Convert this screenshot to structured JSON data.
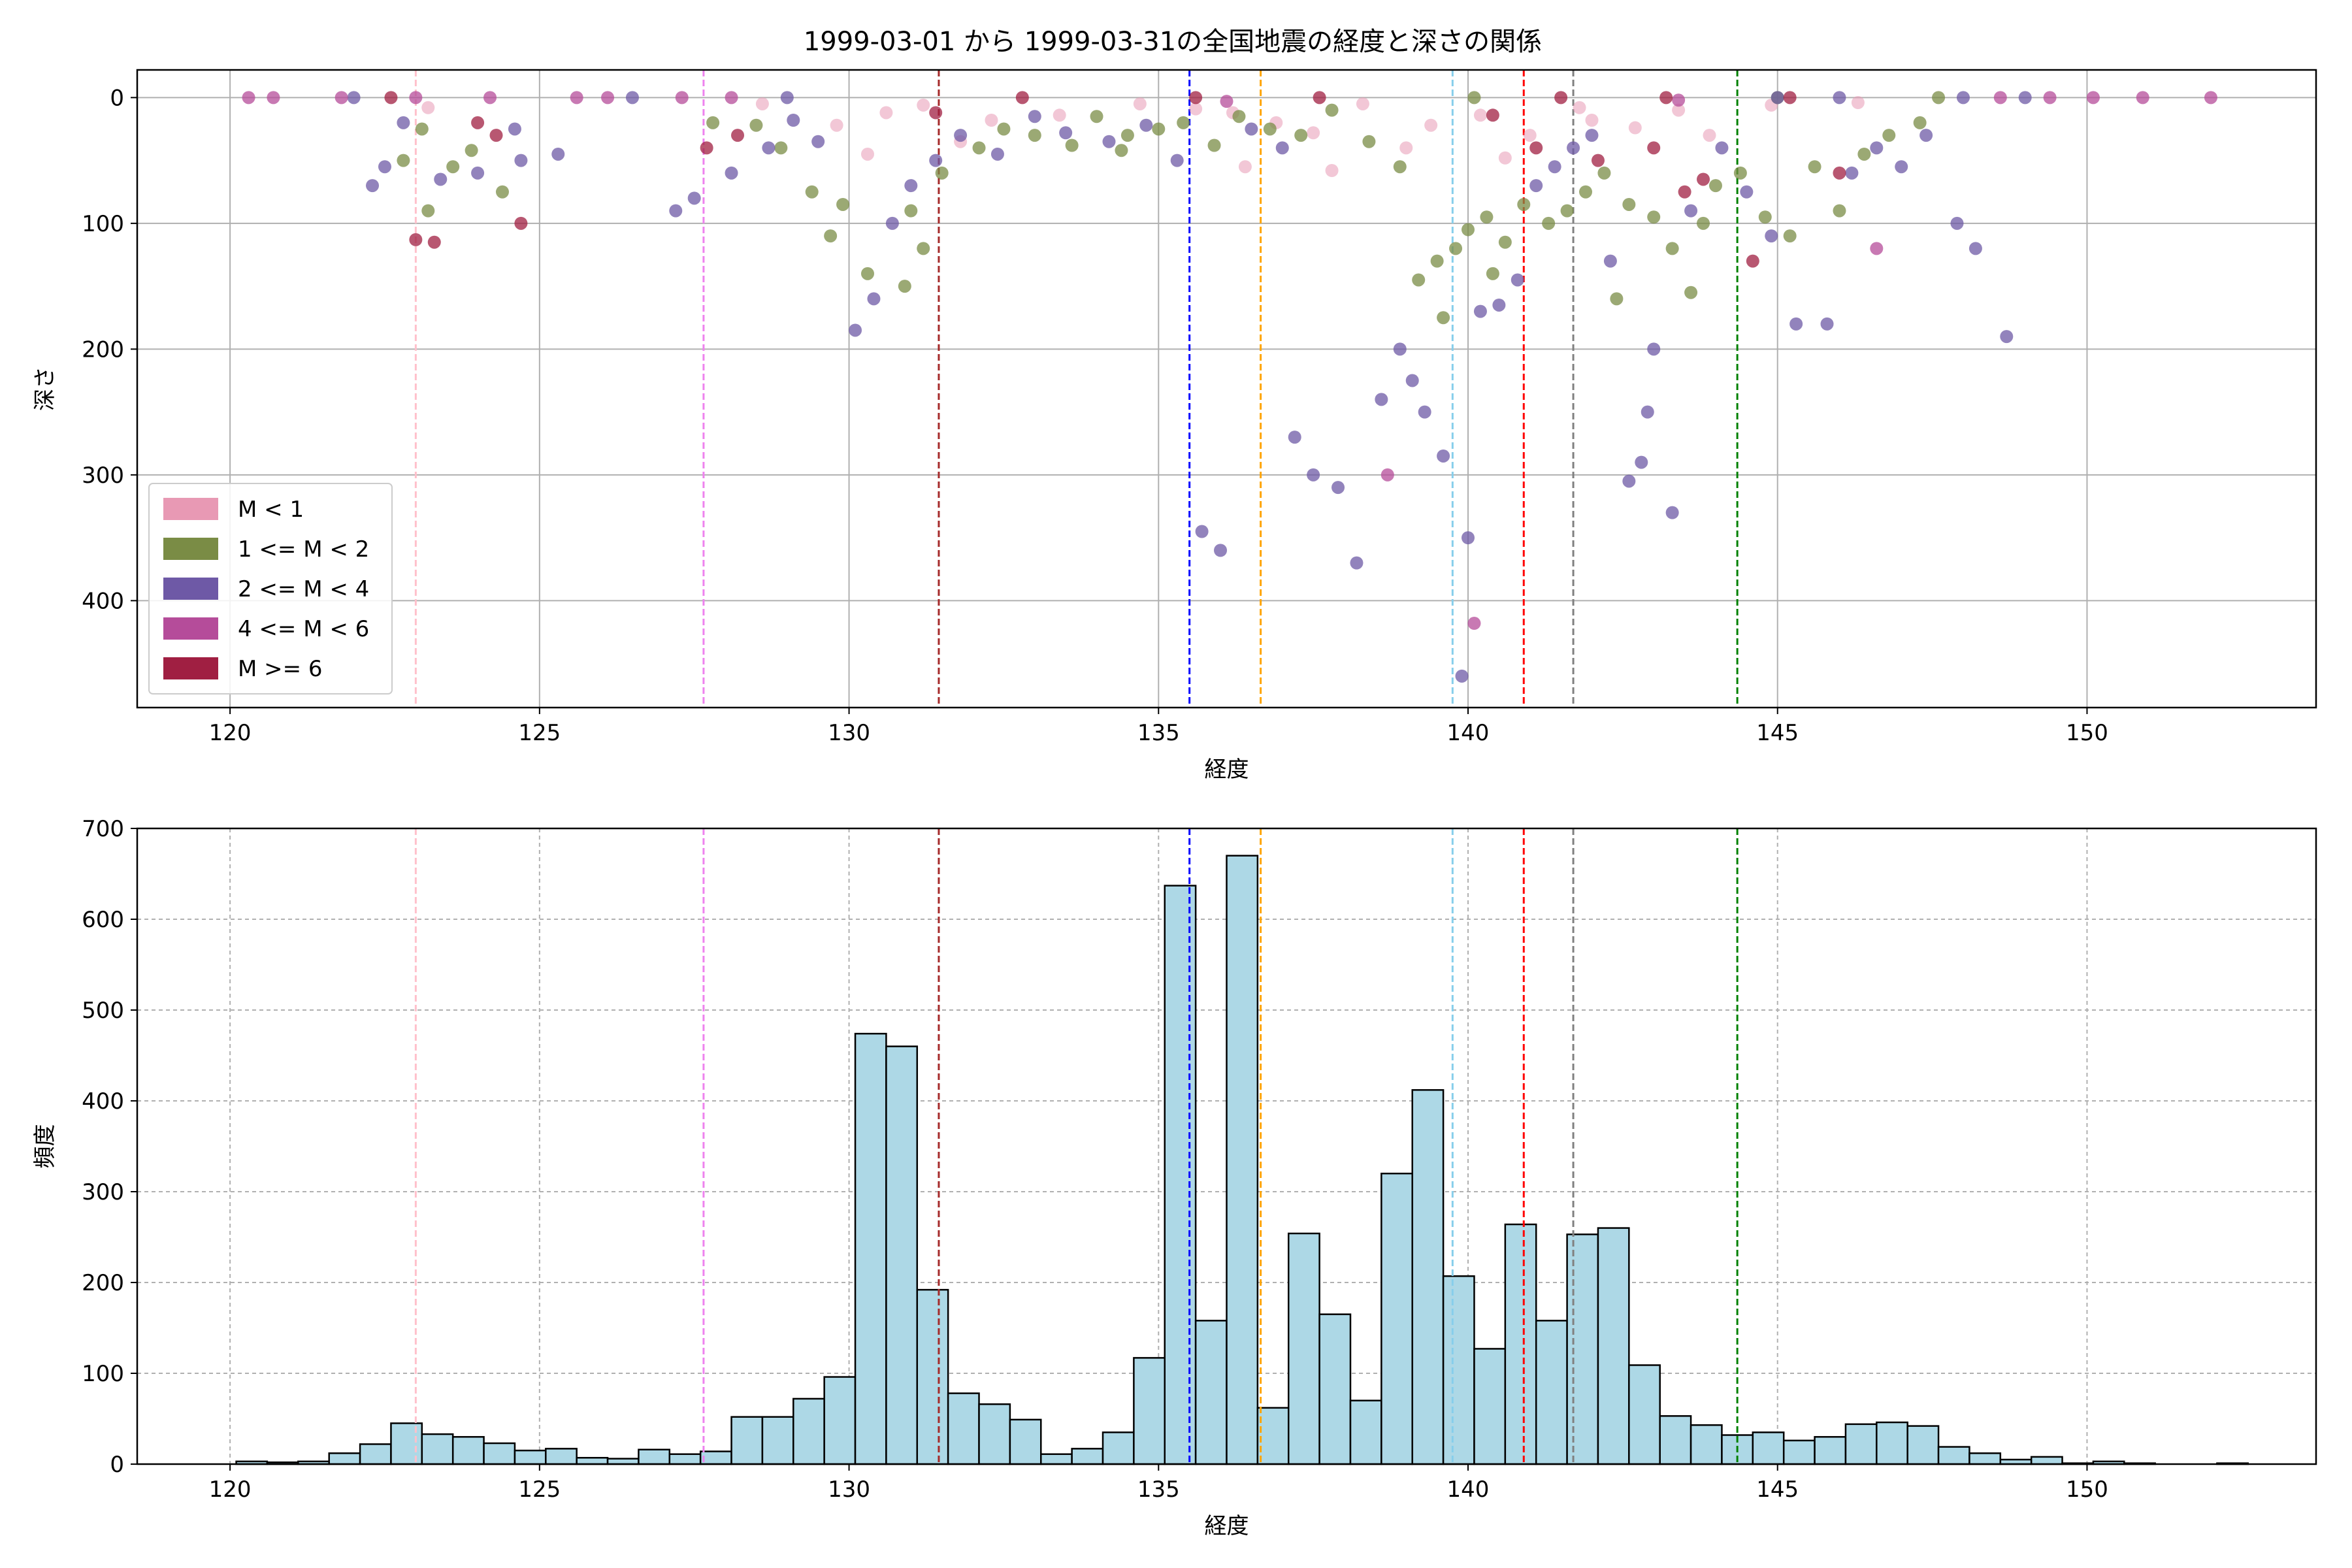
{
  "title": "1999-03-01 から 1999-03-31の全国地震の経度と深さの関係",
  "colors": {
    "background": "#ffffff",
    "grid": "#b0b0b0",
    "bar_fill": "#add8e6",
    "bar_edge": "#000000"
  },
  "chart_data": [
    {
      "type": "scatter",
      "title": "1999-03-01 から 1999-03-31の全国地震の経度と深さの関係",
      "xlabel": "経度",
      "ylabel": "深さ",
      "xlim": [
        118.5,
        153.7
      ],
      "ylim": [
        485,
        -22
      ],
      "y_inverted": true,
      "xticks": [
        120,
        125,
        130,
        135,
        140,
        145,
        150
      ],
      "yticks": [
        0,
        100,
        200,
        300,
        400
      ],
      "grid": true,
      "legend_position": "lower-left",
      "legend": [
        {
          "label": "M < 1",
          "color": "#e899b4"
        },
        {
          "label": "1 <= M < 2",
          "color": "#7a8c45"
        },
        {
          "label": "2 <= M < 4",
          "color": "#6e59a6"
        },
        {
          "label": "4 <= M < 6",
          "color": "#b54c9a"
        },
        {
          "label": "M >= 6",
          "color": "#a01f42"
        }
      ],
      "series": [
        {
          "color": "#e899b4",
          "points": [
            [
              123.2,
              8
            ],
            [
              128.6,
              5
            ],
            [
              129.8,
              22
            ],
            [
              130.6,
              12
            ],
            [
              131.2,
              6
            ],
            [
              132.3,
              18
            ],
            [
              133.4,
              14
            ],
            [
              134.7,
              5
            ],
            [
              135.6,
              9
            ],
            [
              136.2,
              12
            ],
            [
              136.9,
              20
            ],
            [
              137.5,
              28
            ],
            [
              138.3,
              5
            ],
            [
              139.4,
              22
            ],
            [
              140.2,
              14
            ],
            [
              141.0,
              30
            ],
            [
              141.8,
              8
            ],
            [
              142.7,
              24
            ],
            [
              143.4,
              10
            ],
            [
              144.9,
              6
            ],
            [
              146.3,
              4
            ],
            [
              136.4,
              55
            ],
            [
              139.0,
              40
            ],
            [
              137.8,
              58
            ],
            [
              140.6,
              48
            ],
            [
              131.8,
              35
            ],
            [
              130.3,
              45
            ],
            [
              142.0,
              18
            ],
            [
              143.9,
              30
            ]
          ]
        },
        {
          "color": "#7a8c45",
          "points": [
            [
              122.8,
              50
            ],
            [
              123.1,
              25
            ],
            [
              123.6,
              55
            ],
            [
              123.9,
              42
            ],
            [
              124.4,
              75
            ],
            [
              123.2,
              90
            ],
            [
              127.8,
              20
            ],
            [
              128.5,
              22
            ],
            [
              128.9,
              40
            ],
            [
              129.4,
              75
            ],
            [
              129.9,
              85
            ],
            [
              130.3,
              140
            ],
            [
              130.9,
              150
            ],
            [
              131.2,
              120
            ],
            [
              131.5,
              60
            ],
            [
              132.1,
              40
            ],
            [
              132.5,
              25
            ],
            [
              133.0,
              30
            ],
            [
              133.6,
              38
            ],
            [
              134.0,
              15
            ],
            [
              134.5,
              30
            ],
            [
              135.0,
              25
            ],
            [
              135.4,
              20
            ],
            [
              135.9,
              38
            ],
            [
              136.3,
              15
            ],
            [
              136.8,
              25
            ],
            [
              137.3,
              30
            ],
            [
              137.8,
              10
            ],
            [
              138.4,
              35
            ],
            [
              138.9,
              55
            ],
            [
              139.2,
              145
            ],
            [
              139.5,
              130
            ],
            [
              139.8,
              120
            ],
            [
              140.0,
              105
            ],
            [
              140.3,
              95
            ],
            [
              140.6,
              115
            ],
            [
              140.9,
              85
            ],
            [
              141.3,
              100
            ],
            [
              141.6,
              90
            ],
            [
              141.9,
              75
            ],
            [
              142.2,
              60
            ],
            [
              142.6,
              85
            ],
            [
              143.0,
              95
            ],
            [
              143.3,
              120
            ],
            [
              143.6,
              155
            ],
            [
              144.0,
              70
            ],
            [
              144.4,
              60
            ],
            [
              144.8,
              95
            ],
            [
              145.2,
              110
            ],
            [
              145.6,
              55
            ],
            [
              146.0,
              90
            ],
            [
              146.4,
              45
            ],
            [
              146.8,
              30
            ],
            [
              147.3,
              20
            ],
            [
              139.6,
              175
            ],
            [
              140.4,
              140
            ],
            [
              142.4,
              160
            ],
            [
              143.8,
              100
            ],
            [
              140.1,
              0
            ],
            [
              145.0,
              0
            ],
            [
              147.6,
              0
            ],
            [
              134.4,
              42
            ],
            [
              131.0,
              90
            ],
            [
              129.7,
              110
            ]
          ]
        },
        {
          "color": "#6e59a6",
          "points": [
            [
              122.3,
              70
            ],
            [
              122.5,
              55
            ],
            [
              122.8,
              20
            ],
            [
              123.4,
              65
            ],
            [
              124.0,
              60
            ],
            [
              124.6,
              25
            ],
            [
              125.3,
              45
            ],
            [
              124.7,
              50
            ],
            [
              127.2,
              90
            ],
            [
              127.5,
              80
            ],
            [
              128.1,
              60
            ],
            [
              128.7,
              40
            ],
            [
              129.1,
              18
            ],
            [
              129.5,
              35
            ],
            [
              130.1,
              185
            ],
            [
              130.4,
              160
            ],
            [
              130.7,
              100
            ],
            [
              131.0,
              70
            ],
            [
              131.4,
              50
            ],
            [
              131.8,
              30
            ],
            [
              132.4,
              45
            ],
            [
              133.0,
              15
            ],
            [
              133.5,
              28
            ],
            [
              134.2,
              35
            ],
            [
              134.8,
              22
            ],
            [
              135.3,
              50
            ],
            [
              135.7,
              345
            ],
            [
              136.0,
              360
            ],
            [
              136.5,
              25
            ],
            [
              137.0,
              40
            ],
            [
              137.2,
              270
            ],
            [
              137.5,
              300
            ],
            [
              137.9,
              310
            ],
            [
              138.2,
              370
            ],
            [
              138.6,
              240
            ],
            [
              138.9,
              200
            ],
            [
              139.1,
              225
            ],
            [
              139.3,
              250
            ],
            [
              139.6,
              285
            ],
            [
              139.9,
              460
            ],
            [
              140.0,
              350
            ],
            [
              140.2,
              170
            ],
            [
              140.5,
              165
            ],
            [
              140.8,
              145
            ],
            [
              141.1,
              70
            ],
            [
              141.4,
              55
            ],
            [
              141.7,
              40
            ],
            [
              142.0,
              30
            ],
            [
              142.3,
              130
            ],
            [
              142.6,
              305
            ],
            [
              142.8,
              290
            ],
            [
              142.9,
              250
            ],
            [
              143.0,
              200
            ],
            [
              143.3,
              330
            ],
            [
              143.6,
              90
            ],
            [
              144.1,
              40
            ],
            [
              144.5,
              75
            ],
            [
              144.9,
              110
            ],
            [
              145.3,
              180
            ],
            [
              145.8,
              180
            ],
            [
              146.2,
              60
            ],
            [
              146.6,
              40
            ],
            [
              147.0,
              55
            ],
            [
              147.4,
              30
            ],
            [
              147.9,
              100
            ],
            [
              148.2,
              120
            ],
            [
              148.7,
              190
            ],
            [
              145.0,
              0
            ],
            [
              146.0,
              0
            ],
            [
              148.0,
              0
            ],
            [
              149.0,
              0
            ],
            [
              122.0,
              0
            ],
            [
              126.5,
              0
            ],
            [
              129.0,
              0
            ]
          ]
        },
        {
          "color": "#b54c9a",
          "points": [
            [
              120.3,
              0
            ],
            [
              120.7,
              0
            ],
            [
              121.8,
              0
            ],
            [
              123.0,
              0
            ],
            [
              124.2,
              0
            ],
            [
              125.6,
              0
            ],
            [
              126.1,
              0
            ],
            [
              127.3,
              0
            ],
            [
              128.1,
              0
            ],
            [
              136.1,
              3
            ],
            [
              138.7,
              300
            ],
            [
              140.1,
              418
            ],
            [
              143.4,
              2
            ],
            [
              146.6,
              120
            ],
            [
              148.6,
              0
            ],
            [
              149.4,
              0
            ],
            [
              150.1,
              0
            ],
            [
              150.9,
              0
            ],
            [
              152.0,
              0
            ]
          ]
        },
        {
          "color": "#a01f42",
          "points": [
            [
              122.6,
              0
            ],
            [
              123.0,
              113
            ],
            [
              123.3,
              115
            ],
            [
              124.0,
              20
            ],
            [
              124.3,
              30
            ],
            [
              124.7,
              100
            ],
            [
              127.7,
              40
            ],
            [
              128.2,
              30
            ],
            [
              131.4,
              12
            ],
            [
              132.8,
              0
            ],
            [
              135.6,
              0
            ],
            [
              137.6,
              0
            ],
            [
              140.4,
              14
            ],
            [
              141.1,
              40
            ],
            [
              141.5,
              0
            ],
            [
              142.1,
              50
            ],
            [
              143.0,
              40
            ],
            [
              143.2,
              0
            ],
            [
              143.5,
              75
            ],
            [
              143.8,
              65
            ],
            [
              144.6,
              130
            ],
            [
              145.2,
              0
            ],
            [
              146.0,
              60
            ]
          ]
        }
      ],
      "vlines": [
        {
          "x": 123.0,
          "color": "#ffc0cb"
        },
        {
          "x": 127.65,
          "color": "#ee82ee"
        },
        {
          "x": 131.45,
          "color": "#a52a2a"
        },
        {
          "x": 135.5,
          "color": "#0000ff"
        },
        {
          "x": 136.65,
          "color": "#ffa500"
        },
        {
          "x": 139.75,
          "color": "#87ceeb"
        },
        {
          "x": 140.9,
          "color": "#ff0000"
        },
        {
          "x": 141.7,
          "color": "#808080"
        },
        {
          "x": 144.35,
          "color": "#008000"
        }
      ]
    },
    {
      "type": "bar",
      "xlabel": "経度",
      "ylabel": "頻度",
      "xlim": [
        118.5,
        153.7
      ],
      "ylim": [
        0,
        700
      ],
      "xticks": [
        120,
        125,
        130,
        135,
        140,
        145,
        150
      ],
      "yticks": [
        0,
        100,
        200,
        300,
        400,
        500,
        600,
        700
      ],
      "grid": true,
      "bin_start": 120.1,
      "bin_width": 0.5,
      "values": [
        3,
        2,
        3,
        12,
        22,
        45,
        33,
        30,
        23,
        15,
        17,
        7,
        6,
        16,
        11,
        14,
        52,
        52,
        72,
        96,
        474,
        460,
        192,
        78,
        66,
        49,
        11,
        17,
        35,
        117,
        637,
        158,
        670,
        62,
        254,
        165,
        70,
        320,
        412,
        207,
        127,
        264,
        158,
        253,
        260,
        109,
        53,
        43,
        32,
        35,
        26,
        30,
        44,
        46,
        42,
        19,
        12,
        5,
        8,
        1,
        3,
        1,
        0,
        0,
        1
      ],
      "vlines": [
        {
          "x": 123.0,
          "color": "#ffc0cb"
        },
        {
          "x": 127.65,
          "color": "#ee82ee"
        },
        {
          "x": 131.45,
          "color": "#a52a2a"
        },
        {
          "x": 135.5,
          "color": "#0000ff"
        },
        {
          "x": 136.65,
          "color": "#ffa500"
        },
        {
          "x": 139.75,
          "color": "#87ceeb"
        },
        {
          "x": 140.9,
          "color": "#ff0000"
        },
        {
          "x": 141.7,
          "color": "#808080"
        },
        {
          "x": 144.35,
          "color": "#008000"
        }
      ]
    }
  ]
}
